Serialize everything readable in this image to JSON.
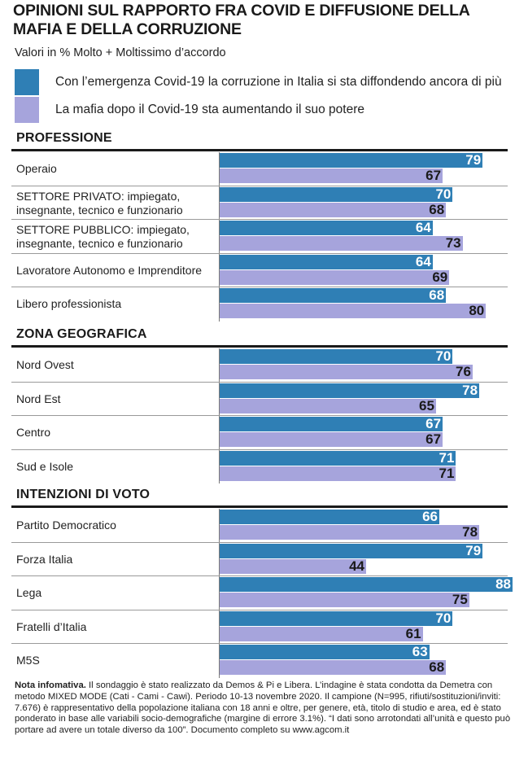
{
  "title": "OPINIONI SUL RAPPORTO FRA COVID E DIFFUSIONE DELLA MAFIA E DELLA CORRUZIONE",
  "subtitle": "Valori in % Molto + Moltissimo d’accordo",
  "colors": {
    "series1": "#2f7fb5",
    "series2": "#a6a4dc"
  },
  "legend": [
    "Con l’emergenza Covid-19 la corruzione in Italia si sta diffondendo ancora di più",
    "La mafia dopo il Covid-19 sta aumentando il suo potere"
  ],
  "chart_data": {
    "type": "bar",
    "orientation": "horizontal",
    "title": "OPINIONI SUL RAPPORTO FRA COVID E DIFFUSIONE DELLA MAFIA E DELLA CORRUZIONE",
    "subtitle": "Valori in % Molto + Moltissimo d’accordo",
    "xlim": [
      0,
      90
    ],
    "grid": false,
    "legend_position": "top",
    "series_names": [
      "Con l’emergenza Covid-19 la corruzione in Italia si sta diffondendo ancora di più",
      "La mafia dopo il Covid-19 sta aumentando il suo potere"
    ],
    "groups": [
      {
        "name": "PROFESSIONE",
        "categories": [
          "Operaio",
          "SETTORE PRIVATO: impiegato, insegnante, tecnico e funzionario",
          "SETTORE PUBBLICO: impiegato, insegnante, tecnico e funzionario",
          "Lavoratore Autonomo e Imprenditore",
          "Libero professionista"
        ],
        "series1": [
          79,
          70,
          64,
          64,
          68
        ],
        "series2": [
          67,
          68,
          73,
          69,
          80
        ]
      },
      {
        "name": "ZONA GEOGRAFICA",
        "categories": [
          "Nord Ovest",
          "Nord Est",
          "Centro",
          "Sud e Isole"
        ],
        "series1": [
          70,
          78,
          67,
          71
        ],
        "series2": [
          76,
          65,
          67,
          71
        ]
      },
      {
        "name": "INTENZIONI DI VOTO",
        "categories": [
          "Partito Democratico",
          "Forza Italia",
          "Lega",
          "Fratelli d’Italia",
          "M5S"
        ],
        "series1": [
          66,
          79,
          88,
          70,
          63
        ],
        "series2": [
          78,
          44,
          75,
          61,
          68
        ]
      }
    ]
  },
  "note": {
    "label": "Nota infomativa.",
    "text": " Il sondaggio è stato realizzato da Demos & Pi e Libera. L’indagine è stata condotta da Demetra con metodo MIXED MODE (Cati - Cami - Cawi). Periodo 10-13 novembre 2020. Il campione (N=995, rifiuti/sostituzioni/inviti: 7.676) è rappresentativo della popolazione italiana con 18 anni e oltre, per genere, età, titolo di studio e area, ed è stato ponderato in base alle variabili socio-demografiche (margine di errore 3.1%). “I dati sono arrotondati all’unità e questo può portare ad avere un totale diverso da 100”. Documento completo su www.agcom.it"
  }
}
